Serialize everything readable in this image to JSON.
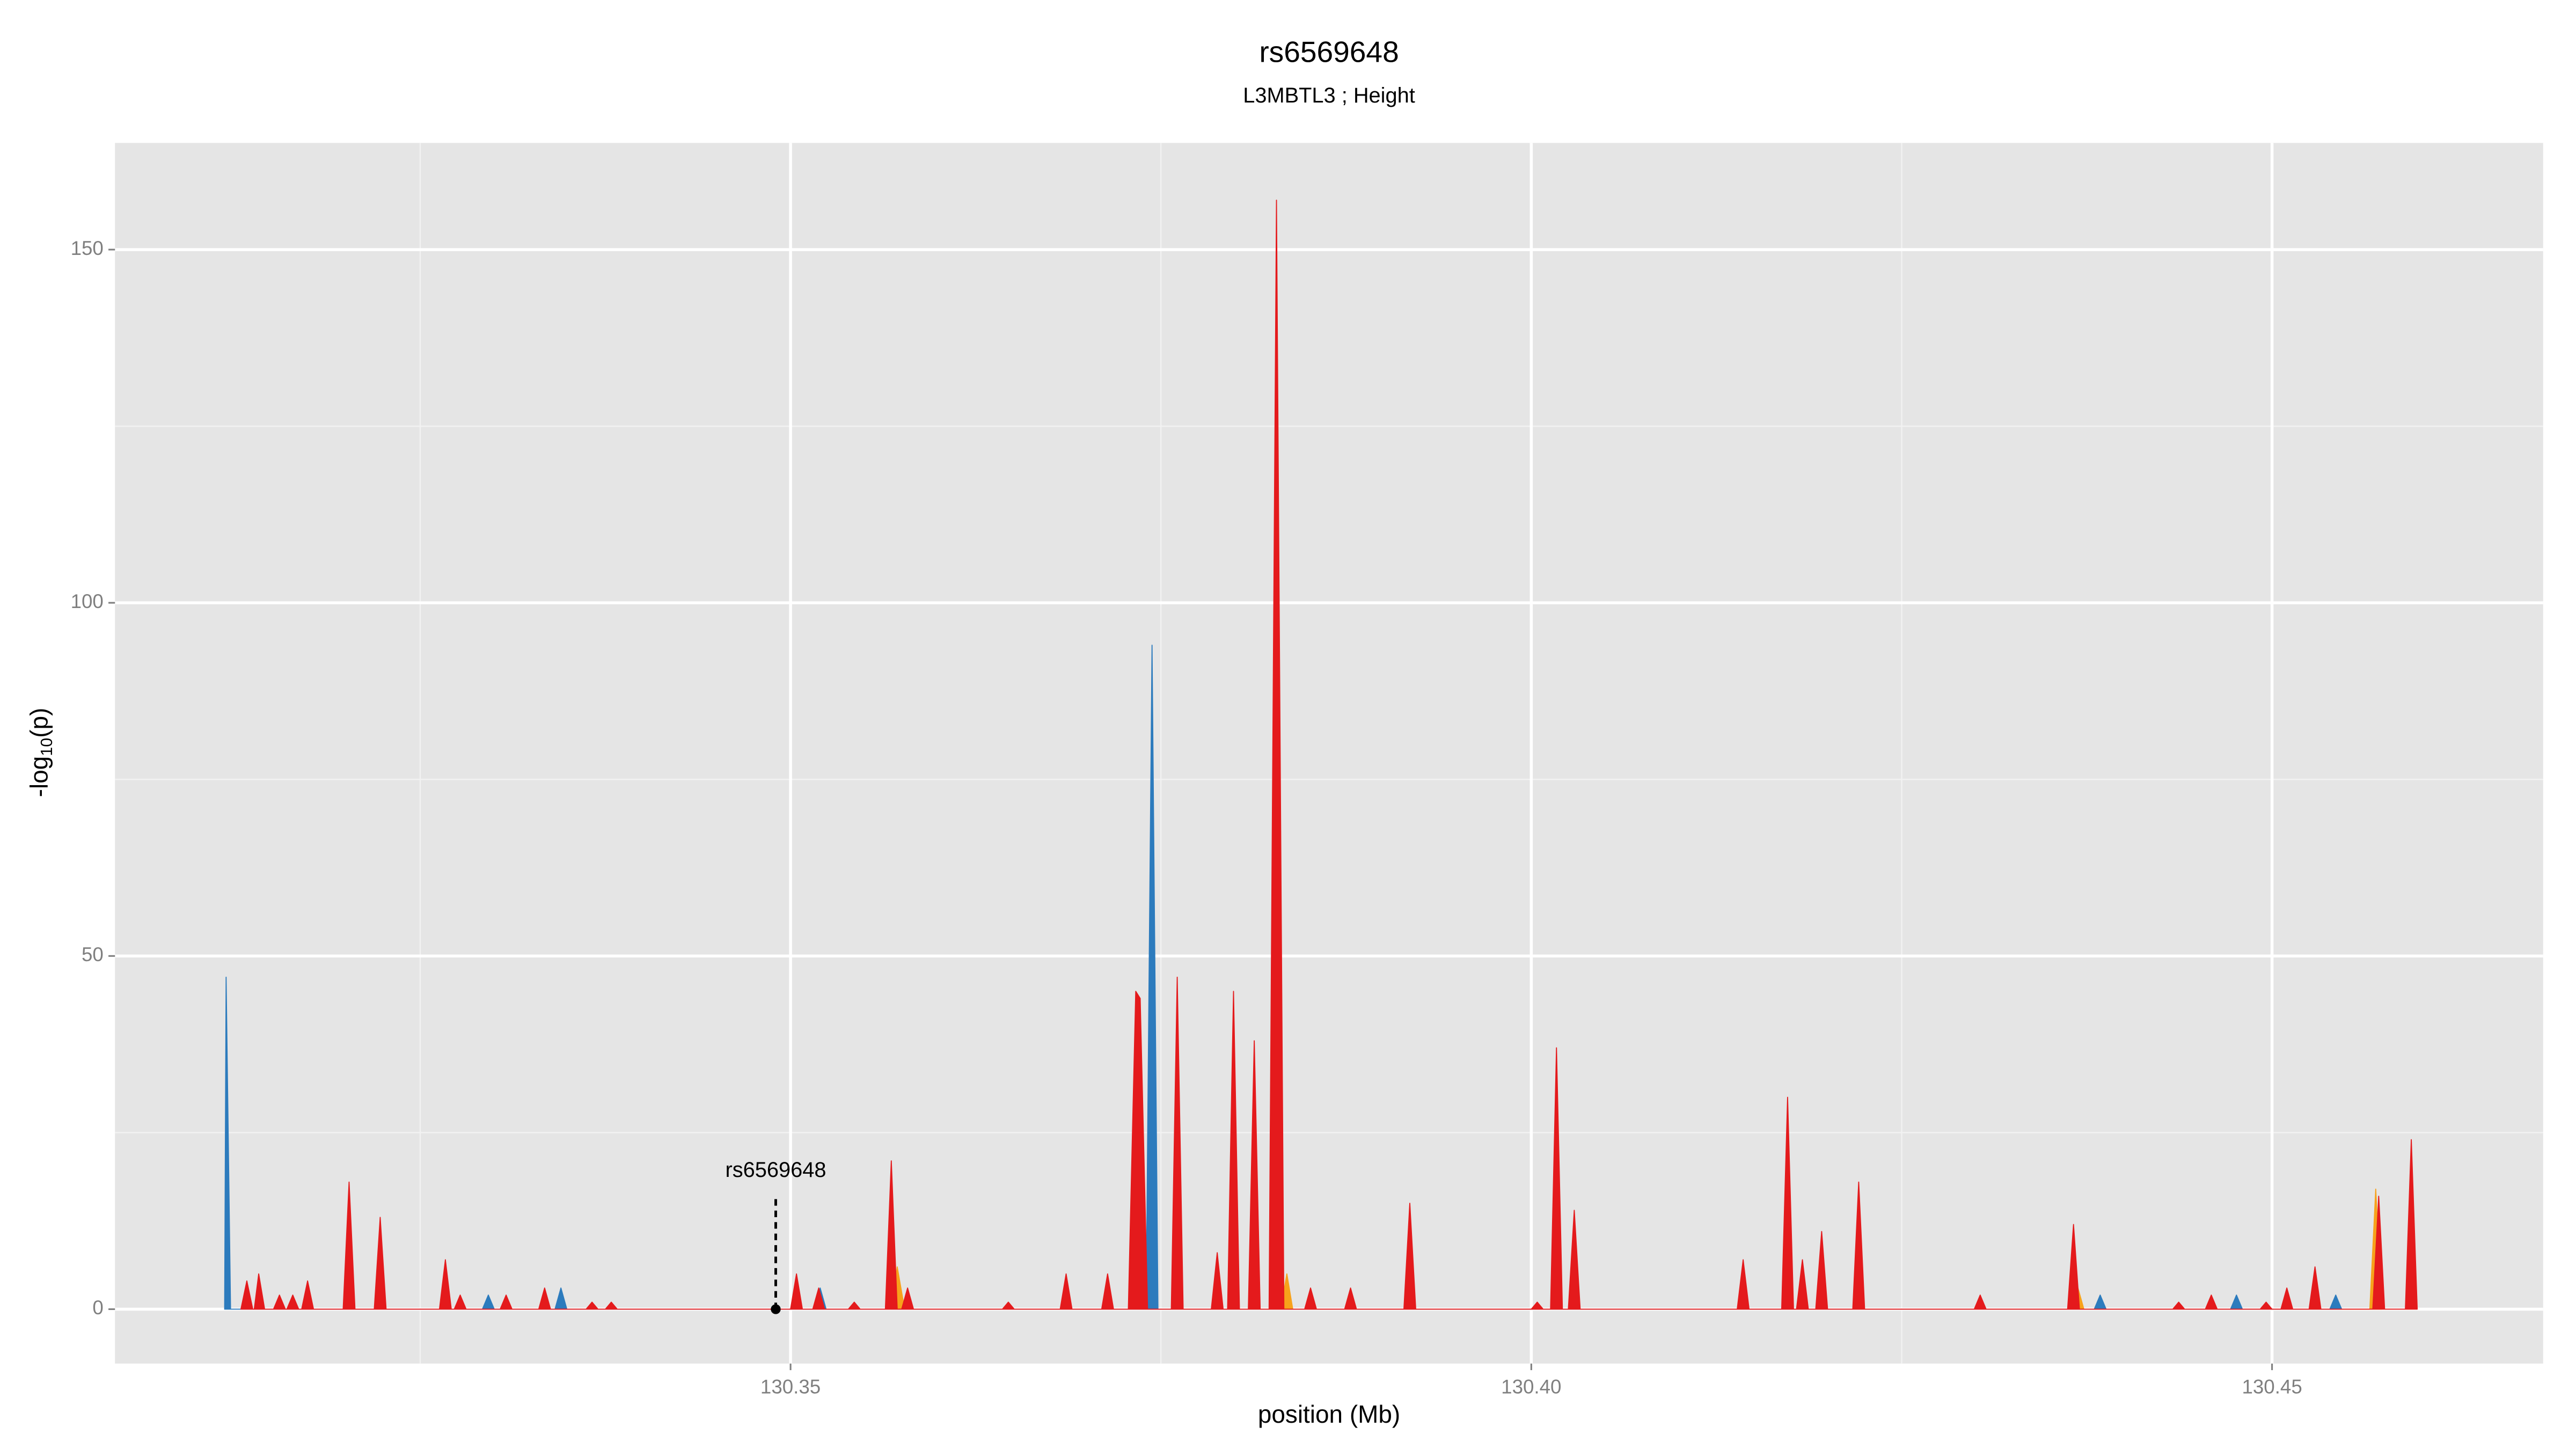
{
  "chart_data": {
    "type": "area",
    "title": "rs6569648",
    "subtitle": "L3MBTL3 ; Height",
    "xlabel": "position (Mb)",
    "ylabel": {
      "prefix": "-log",
      "sub": "10",
      "suffix": "(p)"
    },
    "xlim": [
      130.3044,
      130.4683
    ],
    "ylim": [
      -7.7,
      165.1
    ],
    "xticks": [
      130.35,
      {
        "value": 130.4,
        "label": "130.40"
      },
      130.45
    ],
    "yticks": [
      0,
      50,
      100,
      150
    ],
    "x_minor_grid": [
      130.325,
      130.375,
      130.425
    ],
    "y_minor_grid": [
      25,
      75,
      125
    ],
    "grid": true,
    "annotation": {
      "label": "rs6569648",
      "x": 130.349,
      "y": 0
    },
    "series": [
      {
        "color": "#f7a21b",
        "x": [
          130.3568,
          130.3572,
          130.3577,
          130.3831,
          130.3835,
          130.3839,
          130.4365,
          130.4369,
          130.4373,
          130.4566,
          130.457,
          130.4574
        ],
        "values": [
          0,
          6,
          0,
          0,
          5,
          0,
          0,
          3,
          0,
          0,
          17,
          0
        ]
      },
      {
        "color": "#2c7bbd",
        "x": [
          130.3118,
          130.3119,
          130.3122,
          130.3292,
          130.3296,
          130.33,
          130.3341,
          130.3345,
          130.3349,
          130.3516,
          130.352,
          130.3524,
          130.374,
          130.3744,
          130.3748,
          130.3796,
          130.3799,
          130.3802,
          130.438,
          130.4384,
          130.4388,
          130.4472,
          130.4476,
          130.448,
          130.4539,
          130.4543,
          130.4547
        ],
        "values": [
          0,
          47,
          0,
          0,
          2,
          0,
          0,
          3,
          0,
          0,
          3,
          0,
          0,
          94,
          0,
          0,
          40,
          0,
          0,
          2,
          0,
          0,
          2,
          0,
          0,
          2,
          0
        ]
      },
      {
        "color": "#e41a1c",
        "x": [
          130.3129,
          130.3133,
          130.3137,
          130.3138,
          130.3141,
          130.3145,
          130.3151,
          130.3155,
          130.3159,
          130.316,
          130.3164,
          130.3168,
          130.317,
          130.3174,
          130.3178,
          130.3198,
          130.3202,
          130.3206,
          130.3219,
          130.3223,
          130.3227,
          130.3263,
          130.3267,
          130.3271,
          130.3273,
          130.3277,
          130.3281,
          130.3304,
          130.3308,
          130.3312,
          130.333,
          130.3334,
          130.3338,
          130.3362,
          130.3366,
          130.337,
          130.3375,
          130.3379,
          130.3383,
          130.35,
          130.3504,
          130.3508,
          130.3515,
          130.3519,
          130.3523,
          130.3539,
          130.3543,
          130.3547,
          130.3564,
          130.3568,
          130.3572,
          130.3575,
          130.3579,
          130.3583,
          130.3643,
          130.3647,
          130.3651,
          130.3682,
          130.3686,
          130.369,
          130.371,
          130.3714,
          130.3718,
          130.3728,
          130.3733,
          130.3736,
          130.3741,
          130.3757,
          130.3761,
          130.3765,
          130.3784,
          130.3788,
          130.3792,
          130.3795,
          130.3799,
          130.3803,
          130.3809,
          130.3813,
          130.3817,
          130.3823,
          130.3828,
          130.3833,
          130.3847,
          130.3851,
          130.3855,
          130.3874,
          130.3878,
          130.3882,
          130.3914,
          130.3918,
          130.3922,
          130.4,
          130.4004,
          130.4008,
          130.4013,
          130.4017,
          130.4021,
          130.4025,
          130.4029,
          130.4033,
          130.4139,
          130.4143,
          130.4147,
          130.4169,
          130.4173,
          130.4177,
          130.4179,
          130.4183,
          130.4187,
          130.4192,
          130.4196,
          130.42,
          130.4217,
          130.4221,
          130.4225,
          130.4299,
          130.4303,
          130.4307,
          130.4362,
          130.4366,
          130.437,
          130.4433,
          130.4437,
          130.4441,
          130.4455,
          130.4459,
          130.4463,
          130.4492,
          130.4496,
          130.45,
          130.4506,
          130.451,
          130.4514,
          130.4525,
          130.4529,
          130.4533,
          130.4568,
          130.4572,
          130.4576,
          130.459,
          130.4594,
          130.4598
        ],
        "values": [
          0,
          4,
          0,
          0,
          5,
          0,
          0,
          2,
          0,
          0,
          2,
          0,
          0,
          4,
          0,
          0,
          18,
          0,
          0,
          13,
          0,
          0,
          7,
          0,
          0,
          2,
          0,
          0,
          2,
          0,
          0,
          3,
          0,
          0,
          1,
          0,
          0,
          1,
          0,
          0,
          5,
          0,
          0,
          3,
          0,
          0,
          1,
          0,
          0,
          21,
          0,
          0,
          3,
          0,
          0,
          1,
          0,
          0,
          5,
          0,
          0,
          5,
          0,
          0,
          45,
          44,
          0,
          0,
          47,
          0,
          0,
          8,
          0,
          0,
          45,
          0,
          0,
          38,
          0,
          0,
          157,
          0,
          0,
          3,
          0,
          0,
          3,
          0,
          0,
          15,
          0,
          0,
          1,
          0,
          0,
          37,
          0,
          0,
          14,
          0,
          0,
          7,
          0,
          0,
          30,
          0,
          0,
          7,
          0,
          0,
          11,
          0,
          0,
          18,
          0,
          0,
          2,
          0,
          0,
          12,
          0,
          0,
          1,
          0,
          0,
          2,
          0,
          0,
          1,
          0,
          0,
          3,
          0,
          0,
          6,
          0,
          0,
          16,
          0,
          0,
          24,
          0
        ]
      }
    ]
  }
}
